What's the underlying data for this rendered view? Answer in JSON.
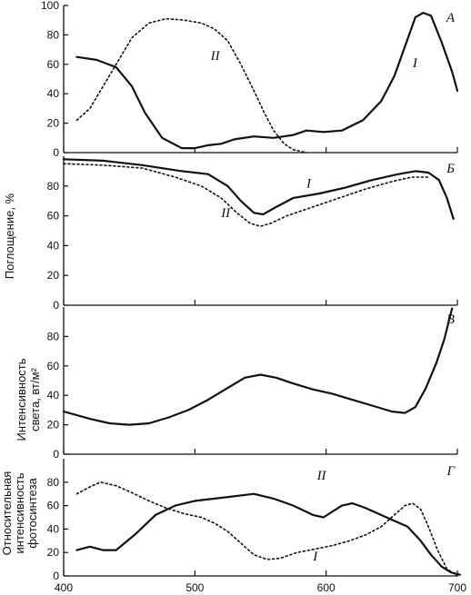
{
  "chart_data": [
    {
      "type": "line",
      "panel_label": "А",
      "x": [
        400,
        700
      ],
      "ylim": [
        0,
        100
      ],
      "yticks": [
        "0",
        "20",
        "40",
        "60",
        "80",
        "100"
      ],
      "series": [
        {
          "name": "I",
          "style": "solid",
          "points": [
            [
              410,
              65
            ],
            [
              425,
              63
            ],
            [
              440,
              58
            ],
            [
              452,
              45
            ],
            [
              462,
              27
            ],
            [
              475,
              10
            ],
            [
              490,
              3
            ],
            [
              500,
              3
            ],
            [
              510,
              5
            ],
            [
              520,
              6
            ],
            [
              530,
              9
            ],
            [
              545,
              11
            ],
            [
              560,
              10
            ],
            [
              575,
              12
            ],
            [
              585,
              15
            ],
            [
              598,
              14
            ],
            [
              612,
              15
            ],
            [
              628,
              22
            ],
            [
              642,
              35
            ],
            [
              652,
              52
            ],
            [
              660,
              72
            ],
            [
              668,
              92
            ],
            [
              674,
              95
            ],
            [
              680,
              93
            ],
            [
              688,
              75
            ],
            [
              696,
              55
            ],
            [
              700,
              42
            ]
          ]
        },
        {
          "name": "II",
          "style": "dotted",
          "points": [
            [
              410,
              22
            ],
            [
              420,
              30
            ],
            [
              430,
              45
            ],
            [
              440,
              60
            ],
            [
              452,
              78
            ],
            [
              465,
              88
            ],
            [
              478,
              91
            ],
            [
              492,
              90
            ],
            [
              505,
              88
            ],
            [
              515,
              84
            ],
            [
              525,
              76
            ],
            [
              535,
              60
            ],
            [
              545,
              42
            ],
            [
              553,
              27
            ],
            [
              560,
              15
            ],
            [
              568,
              6
            ],
            [
              575,
              2
            ],
            [
              585,
              0
            ]
          ]
        }
      ]
    },
    {
      "type": "line",
      "panel_label": "Б",
      "x": [
        400,
        700
      ],
      "ylim": [
        0,
        100
      ],
      "yticks": [
        "0",
        "20",
        "40",
        "60",
        "80"
      ],
      "series": [
        {
          "name": "I",
          "style": "solid",
          "points": [
            [
              400,
              98
            ],
            [
              430,
              97
            ],
            [
              460,
              94
            ],
            [
              490,
              90
            ],
            [
              510,
              88
            ],
            [
              525,
              80
            ],
            [
              535,
              70
            ],
            [
              545,
              62
            ],
            [
              552,
              61
            ],
            [
              560,
              65
            ],
            [
              575,
              72
            ],
            [
              595,
              75
            ],
            [
              615,
              79
            ],
            [
              635,
              84
            ],
            [
              655,
              88
            ],
            [
              668,
              90
            ],
            [
              678,
              89
            ],
            [
              686,
              84
            ],
            [
              692,
              72
            ],
            [
              697,
              58
            ]
          ]
        },
        {
          "name": "II",
          "style": "dotted",
          "points": [
            [
              400,
              95
            ],
            [
              430,
              94
            ],
            [
              460,
              92
            ],
            [
              485,
              86
            ],
            [
              505,
              80
            ],
            [
              520,
              72
            ],
            [
              532,
              62
            ],
            [
              542,
              55
            ],
            [
              550,
              53
            ],
            [
              558,
              55
            ],
            [
              570,
              60
            ],
            [
              590,
              66
            ],
            [
              610,
              72
            ],
            [
              630,
              78
            ],
            [
              650,
              83
            ],
            [
              665,
              86
            ],
            [
              678,
              86
            ]
          ]
        }
      ]
    },
    {
      "type": "line",
      "panel_label": "В",
      "x": [
        400,
        700
      ],
      "ylim": [
        0,
        100
      ],
      "yticks": [
        "0",
        "20",
        "40",
        "60",
        "80"
      ],
      "series": [
        {
          "name": "",
          "style": "solid",
          "points": [
            [
              400,
              29
            ],
            [
              420,
              24
            ],
            [
              435,
              21
            ],
            [
              450,
              20
            ],
            [
              465,
              21
            ],
            [
              480,
              25
            ],
            [
              495,
              30
            ],
            [
              510,
              37
            ],
            [
              525,
              45
            ],
            [
              538,
              52
            ],
            [
              550,
              54
            ],
            [
              562,
              52
            ],
            [
              575,
              48
            ],
            [
              590,
              44
            ],
            [
              605,
              41
            ],
            [
              620,
              37
            ],
            [
              635,
              33
            ],
            [
              650,
              29
            ],
            [
              660,
              28
            ],
            [
              668,
              32
            ],
            [
              676,
              45
            ],
            [
              684,
              62
            ],
            [
              690,
              78
            ],
            [
              694,
              92
            ],
            [
              696,
              99
            ]
          ]
        }
      ]
    },
    {
      "type": "line",
      "panel_label": "Г",
      "x": [
        400,
        700
      ],
      "ylim": [
        0,
        100
      ],
      "yticks": [
        "0",
        "20",
        "40",
        "60",
        "80"
      ],
      "xticks": [
        "400",
        "500",
        "600",
        "700"
      ],
      "series": [
        {
          "name": "II",
          "style": "solid",
          "points": [
            [
              410,
              22
            ],
            [
              420,
              25
            ],
            [
              430,
              22
            ],
            [
              440,
              22
            ],
            [
              455,
              36
            ],
            [
              470,
              52
            ],
            [
              485,
              60
            ],
            [
              500,
              64
            ],
            [
              515,
              66
            ],
            [
              530,
              68
            ],
            [
              545,
              70
            ],
            [
              560,
              66
            ],
            [
              575,
              60
            ],
            [
              590,
              52
            ],
            [
              598,
              50
            ],
            [
              605,
              55
            ],
            [
              612,
              60
            ],
            [
              620,
              62
            ],
            [
              630,
              58
            ],
            [
              640,
              53
            ],
            [
              652,
              47
            ],
            [
              662,
              42
            ],
            [
              672,
              30
            ],
            [
              680,
              18
            ],
            [
              688,
              8
            ],
            [
              695,
              3
            ],
            [
              702,
              1
            ]
          ]
        },
        {
          "name": "I",
          "style": "dotted",
          "points": [
            [
              410,
              70
            ],
            [
              420,
              76
            ],
            [
              428,
              80
            ],
            [
              440,
              77
            ],
            [
              452,
              71
            ],
            [
              465,
              64
            ],
            [
              478,
              58
            ],
            [
              492,
              53
            ],
            [
              505,
              50
            ],
            [
              515,
              45
            ],
            [
              525,
              38
            ],
            [
              535,
              28
            ],
            [
              545,
              18
            ],
            [
              555,
              14
            ],
            [
              565,
              15
            ],
            [
              578,
              20
            ],
            [
              592,
              23
            ],
            [
              605,
              26
            ],
            [
              618,
              30
            ],
            [
              630,
              35
            ],
            [
              642,
              42
            ],
            [
              652,
              52
            ],
            [
              660,
              60
            ],
            [
              666,
              62
            ],
            [
              672,
              57
            ],
            [
              678,
              42
            ],
            [
              685,
              22
            ],
            [
              692,
              6
            ],
            [
              700,
              0
            ]
          ]
        }
      ]
    }
  ],
  "axis_labels": {
    "ab_ylabel": "Поглощение, %",
    "v_ylabel_line1": "Интенсивность",
    "v_ylabel_line2": "света, вт/м²",
    "g_ylabel_line1": "Относительная",
    "g_ylabel_line2": "интенсивность",
    "g_ylabel_line3": "фотосинтеза"
  }
}
